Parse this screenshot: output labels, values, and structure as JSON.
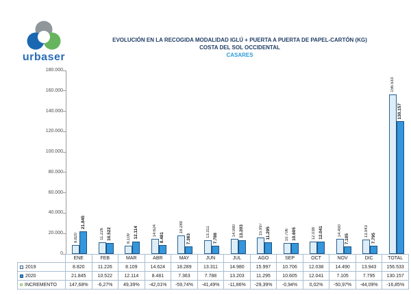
{
  "logo": {
    "text": "urbaser"
  },
  "title": {
    "line1": "EVOLUCIÓN EN LA RECOGIDA MODALIDAD IGLÚ + PUERTA A PUERTA DE PAPEL-CARTÓN (KG)",
    "line2": "COSTA DEL SOL OCCIDENTAL",
    "line3": "CASARES"
  },
  "colors": {
    "title": "#1f3c64",
    "municipality": "#2e9bd9",
    "logo_gray": "#8f979a",
    "logo_blue": "#1a68b2",
    "logo_green": "#66b55e",
    "logo_text": "#2a6cb8",
    "table_border": "#a9bdd1",
    "axis": "#9a9a9a"
  },
  "chart_data": {
    "type": "bar",
    "title": "EVOLUCIÓN EN LA RECOGIDA MODALIDAD IGLÚ + PUERTA A PUERTA DE PAPEL-CARTÓN (KG) — COSTA DEL SOL OCCIDENTAL — CASARES",
    "categories": [
      "ENE",
      "FEB",
      "MAR",
      "ABR",
      "MAY",
      "JUN",
      "JUL",
      "AGO",
      "SEP",
      "OCT",
      "NOV",
      "DIC",
      "TOTAL"
    ],
    "series": [
      {
        "name": "2019",
        "values": [
          8820,
          11226,
          8109,
          14624,
          18289,
          13311,
          14980,
          15997,
          10706,
          12038,
          14490,
          13943,
          156533
        ],
        "fill": "#ddeef9",
        "border": "#2a5d8c"
      },
      {
        "name": "2020",
        "values": [
          21845,
          10522,
          12114,
          8481,
          7363,
          7788,
          13203,
          11295,
          10605,
          12041,
          7105,
          7795,
          130157
        ],
        "fill": "#3496dc",
        "border": "#1d4f7c"
      }
    ],
    "incremento": {
      "name": "INCREMENTO",
      "values": [
        "147,68%",
        "-6,27%",
        "49,39%",
        "-42,01%",
        "-59,74%",
        "-41,49%",
        "-11,86%",
        "-29,39%",
        "-0,94%",
        "0,02%",
        "-50,97%",
        "-44,09%",
        "-16,85%"
      ],
      "marker_fill": "#c9e3b5",
      "marker_border": "#9ec07f"
    },
    "ylim": [
      0,
      180000
    ],
    "ytick_labels": [
      "0",
      "20.000",
      "40.000",
      "60.000",
      "80.000",
      "100.000",
      "120.000",
      "140.000",
      "160.000",
      "180.000"
    ],
    "grid": false,
    "legend_position": "data-table-left"
  }
}
